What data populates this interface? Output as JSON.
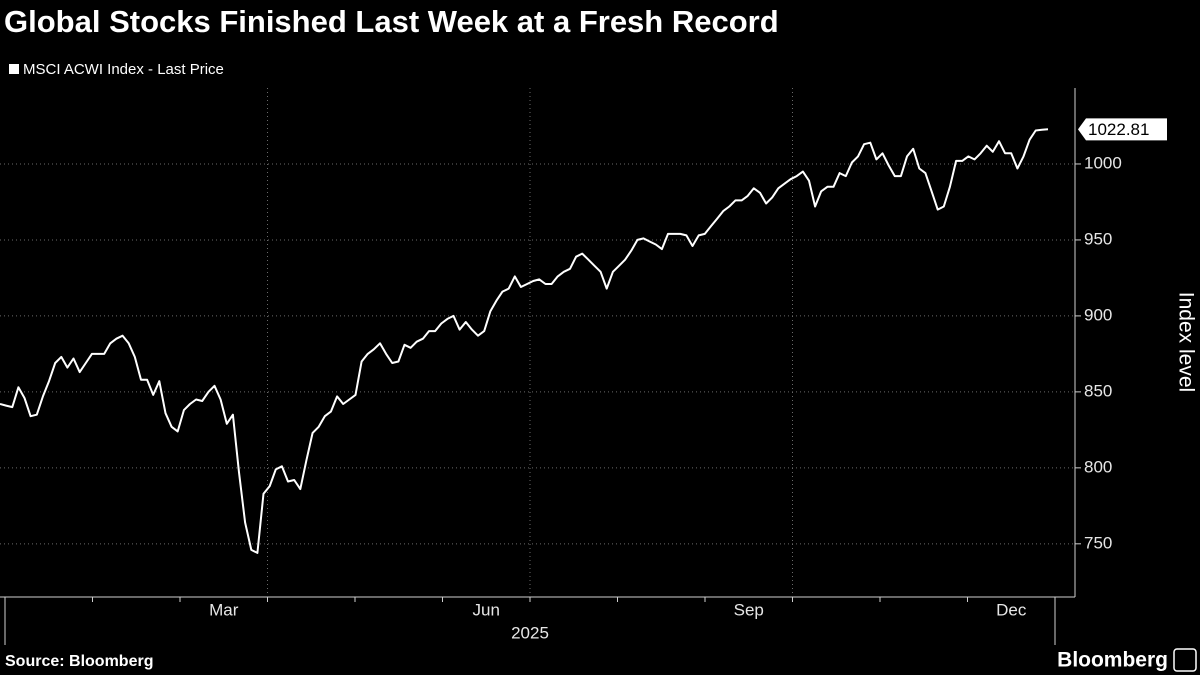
{
  "chart_data": {
    "type": "line",
    "title": "Global Stocks Finished Last Week at a Fresh Record",
    "series": [
      {
        "name": "MSCI ACWI Index - Last Price",
        "color": "#ffffff",
        "values": [
          842,
          841,
          840,
          853,
          846,
          834,
          835,
          847,
          857,
          869,
          873,
          866,
          872,
          863,
          869,
          875,
          875,
          875,
          882,
          885,
          887,
          882,
          873,
          858,
          858,
          848,
          857,
          836,
          827,
          824,
          838,
          842,
          845,
          844,
          850,
          854,
          845,
          829,
          835,
          797,
          764,
          746,
          744,
          783,
          788,
          799,
          801,
          791,
          792,
          786,
          805,
          823,
          827,
          834,
          837,
          847,
          842,
          845,
          848,
          870,
          875,
          878,
          882,
          875,
          869,
          870,
          881,
          879,
          883,
          885,
          890,
          890,
          895,
          898,
          900,
          891,
          896,
          891,
          887,
          890,
          903,
          910,
          916,
          918,
          926,
          919,
          921,
          923,
          924,
          921,
          921,
          926,
          929,
          931,
          939,
          941,
          937,
          933,
          929,
          918,
          929,
          933,
          937,
          943,
          950,
          951,
          949,
          947,
          944,
          954,
          954,
          954,
          953,
          946,
          953,
          954,
          959,
          964,
          969,
          972,
          976,
          976,
          979,
          984,
          981,
          974,
          978,
          984,
          987,
          990,
          992,
          995,
          989,
          972,
          982,
          985,
          985,
          994,
          992,
          1001,
          1005,
          1013,
          1014,
          1003,
          1007,
          999,
          992,
          992,
          1005,
          1010,
          997,
          994,
          982,
          970,
          972,
          985,
          1002,
          1002,
          1005,
          1003,
          1007,
          1012,
          1008,
          1015,
          1007,
          1007,
          997,
          1005,
          1016,
          1022,
          1022.5,
          1022.81
        ]
      }
    ],
    "months": [
      null,
      null,
      "Mar",
      null,
      null,
      "Jun",
      null,
      null,
      "Sep",
      null,
      null,
      "Dec"
    ],
    "year": "2025",
    "ylabel": "Index level",
    "ylim": [
      715,
      1050
    ],
    "yticks": [
      750,
      800,
      850,
      900,
      950,
      1000
    ],
    "grid": true
  },
  "footer": {
    "source": "Source: Bloomberg",
    "brand": "Bloomberg"
  }
}
